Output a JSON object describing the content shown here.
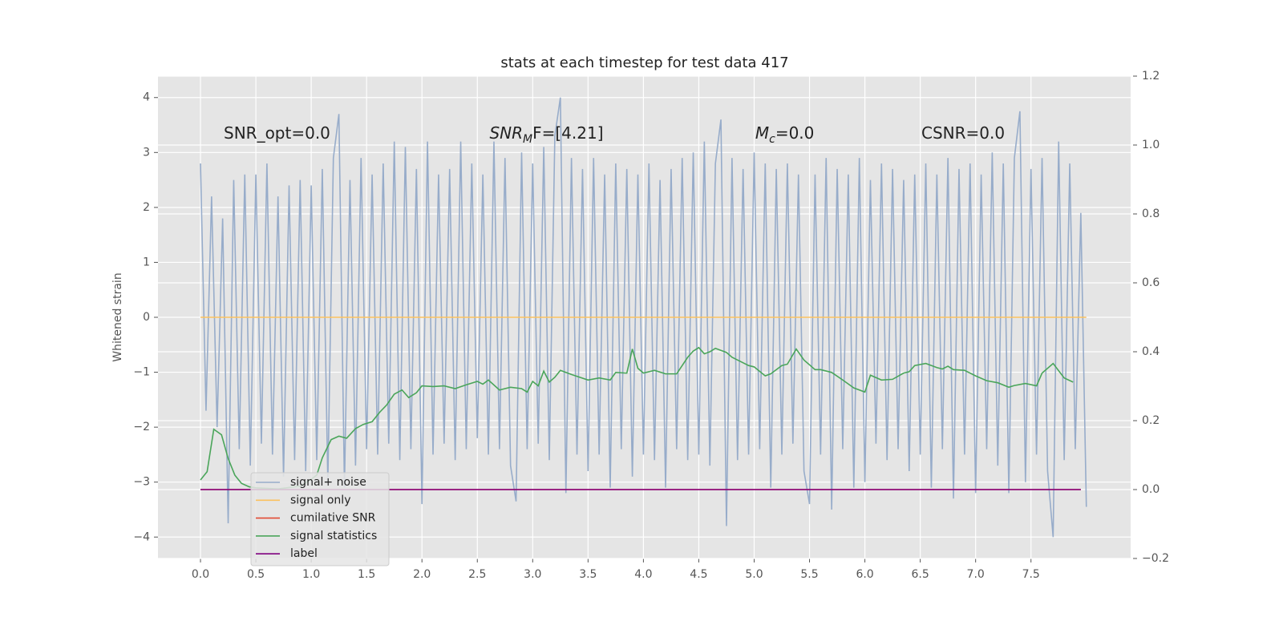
{
  "chart_data": {
    "type": "line",
    "title": "stats at each timestep for test data 417",
    "ylabel": "Whitened strain",
    "xlim": [
      -0.384,
      8.4
    ],
    "ylim": [
      -4.39,
      4.39
    ],
    "y2lim": [
      -0.2,
      1.2
    ],
    "xticks": [
      {
        "value": 0,
        "label": "0.0"
      },
      0.5,
      {
        "value": 1,
        "label": "1.0"
      },
      1.5,
      {
        "value": 2,
        "label": "2.0"
      },
      2.5,
      {
        "value": 3,
        "label": "3.0"
      },
      3.5,
      {
        "value": 4,
        "label": "4.0"
      },
      4.5,
      {
        "value": 5,
        "label": "5.0"
      },
      5.5,
      {
        "value": 6,
        "label": "6.0"
      },
      6.5,
      {
        "value": 7,
        "label": "7.0"
      },
      7.5
    ],
    "yticks": [
      {
        "value": -4,
        "label": "−4"
      },
      {
        "value": -3,
        "label": "−3"
      },
      {
        "value": -2,
        "label": "−2"
      },
      {
        "value": -1,
        "label": "−1"
      },
      0,
      1,
      2,
      3,
      4
    ],
    "y2ticks": [
      {
        "value": -0.2,
        "label": "−0.2"
      },
      {
        "value": 0,
        "label": "0.0"
      },
      0.2,
      0.4,
      0.6,
      0.8,
      {
        "value": 1,
        "label": "1.0"
      },
      1.2
    ],
    "grid": true,
    "legend": "lower left",
    "annotations": [
      {
        "x": 0.21,
        "y": 3.25,
        "text": "SNR_opt=0.0"
      },
      {
        "x": 2.61,
        "y": 3.25,
        "base": "SNR",
        "sub": "M",
        "rest": "F=[4.21]"
      },
      {
        "x": 5.01,
        "y": 3.25,
        "base": "M",
        "sub": "c",
        "rest": "=0.0"
      },
      {
        "x": 6.51,
        "y": 3.25,
        "text": "CSNR=0.0"
      }
    ],
    "series": [
      {
        "name": "signal+ noise",
        "color": "#97acca",
        "x": [
          0,
          0.05,
          0.1,
          0.15,
          0.2,
          0.25,
          0.3,
          0.35,
          0.4,
          0.45,
          0.5,
          0.55,
          0.6,
          0.65,
          0.7,
          0.75,
          0.8,
          0.85,
          0.9,
          0.95,
          1,
          1.05,
          1.1,
          1.15,
          1.2,
          1.25,
          1.3,
          1.35,
          1.4,
          1.45,
          1.5,
          1.55,
          1.6,
          1.65,
          1.7,
          1.75,
          1.8,
          1.85,
          1.9,
          1.95,
          2,
          2.05,
          2.1,
          2.15,
          2.2,
          2.25,
          2.3,
          2.35,
          2.4,
          2.45,
          2.5,
          2.55,
          2.6,
          2.65,
          2.7,
          2.75,
          2.8,
          2.85,
          2.9,
          2.95,
          3,
          3.05,
          3.1,
          3.15,
          3.2,
          3.25,
          3.3,
          3.35,
          3.4,
          3.45,
          3.5,
          3.55,
          3.6,
          3.65,
          3.7,
          3.75,
          3.8,
          3.85,
          3.9,
          3.95,
          4,
          4.05,
          4.1,
          4.15,
          4.2,
          4.25,
          4.3,
          4.35,
          4.4,
          4.45,
          4.5,
          4.55,
          4.6,
          4.65,
          4.7,
          4.75,
          4.8,
          4.85,
          4.9,
          4.95,
          5,
          5.05,
          5.1,
          5.15,
          5.2,
          5.25,
          5.3,
          5.35,
          5.4,
          5.45,
          5.5,
          5.55,
          5.6,
          5.65,
          5.7,
          5.75,
          5.8,
          5.85,
          5.9,
          5.95,
          6,
          6.05,
          6.1,
          6.15,
          6.2,
          6.25,
          6.3,
          6.35,
          6.4,
          6.45,
          6.5,
          6.55,
          6.6,
          6.65,
          6.7,
          6.75,
          6.8,
          6.85,
          6.9,
          6.95,
          7,
          7.05,
          7.1,
          7.15,
          7.2,
          7.25,
          7.3,
          7.35,
          7.4,
          7.45,
          7.5,
          7.55,
          7.6,
          7.65,
          7.7,
          7.75,
          7.8,
          7.85,
          7.9,
          7.95,
          8
        ],
        "values": [
          2.8,
          -1.7,
          2.2,
          -2.0,
          1.8,
          -3.75,
          2.5,
          -2.4,
          2.6,
          -2.7,
          2.6,
          -2.3,
          2.8,
          -2.5,
          2.2,
          -2.9,
          2.4,
          -2.6,
          2.5,
          -2.8,
          2.4,
          -2.6,
          2.7,
          -3.0,
          2.9,
          3.7,
          -3.1,
          2.5,
          -2.7,
          2.9,
          -2.4,
          2.6,
          -2.5,
          2.8,
          -2.3,
          3.2,
          -2.6,
          3.1,
          -2.4,
          2.7,
          -3.4,
          3.2,
          -2.5,
          2.6,
          -2.3,
          2.7,
          -2.6,
          3.2,
          -2.4,
          2.8,
          -2.2,
          2.6,
          -2.5,
          3.2,
          -2.4,
          2.9,
          -2.7,
          -3.35,
          3.0,
          -2.4,
          2.8,
          -2.3,
          3.1,
          -2.6,
          3.3,
          4.0,
          -3.2,
          2.9,
          -2.5,
          2.7,
          -2.8,
          2.9,
          -2.5,
          2.6,
          -3.1,
          2.8,
          -2.4,
          2.7,
          -2.9,
          2.6,
          -2.5,
          2.8,
          -2.6,
          2.5,
          -3.1,
          2.7,
          -2.4,
          2.9,
          -2.6,
          3.0,
          -2.5,
          3.2,
          -2.7,
          2.8,
          3.6,
          -3.8,
          2.9,
          -2.6,
          2.7,
          -2.5,
          3.0,
          -2.4,
          2.8,
          -3.1,
          2.7,
          -2.5,
          2.8,
          -2.3,
          2.6,
          -2.8,
          -3.4,
          2.6,
          -2.5,
          2.9,
          -3.5,
          2.7,
          -2.4,
          2.6,
          -3.1,
          2.9,
          -3.0,
          2.5,
          -2.3,
          2.8,
          -2.6,
          2.7,
          -2.4,
          2.5,
          -2.8,
          2.6,
          -2.5,
          2.8,
          -3.1,
          2.6,
          -2.4,
          2.9,
          -3.3,
          2.7,
          -2.5,
          2.8,
          -3.2,
          2.6,
          -2.4,
          3.0,
          -2.7,
          2.8,
          -3.2,
          2.9,
          3.75,
          -3.0,
          2.7,
          -2.5,
          2.9,
          -2.8,
          -4.0,
          3.2,
          -2.6,
          2.8,
          -2.4,
          1.9,
          -3.45
        ]
      },
      {
        "name": "signal only",
        "color": "#fbc15e",
        "x": [
          0,
          8
        ],
        "values": [
          0,
          0
        ]
      },
      {
        "name": "cumilative SNR",
        "color": "#e24a33",
        "axis": "y2",
        "x": [
          0,
          7.95
        ],
        "values": [
          0,
          0
        ]
      },
      {
        "name": "signal statistics",
        "color": "#4aa55a",
        "axis": "y2",
        "x": [
          0,
          0.06,
          0.12,
          0.19,
          0.25,
          0.31,
          0.37,
          0.44,
          0.5,
          0.7,
          0.9,
          1.0,
          1.05,
          1.1,
          1.18,
          1.25,
          1.32,
          1.4,
          1.47,
          1.55,
          1.62,
          1.68,
          1.75,
          1.82,
          1.88,
          1.95,
          2.0,
          2.1,
          2.2,
          2.3,
          2.4,
          2.5,
          2.55,
          2.6,
          2.7,
          2.8,
          2.9,
          2.95,
          3.0,
          3.05,
          3.1,
          3.15,
          3.2,
          3.25,
          3.35,
          3.5,
          3.6,
          3.7,
          3.75,
          3.85,
          3.9,
          3.95,
          4.0,
          4.1,
          4.2,
          4.3,
          4.4,
          4.45,
          4.5,
          4.55,
          4.6,
          4.65,
          4.75,
          4.8,
          4.85,
          4.95,
          5.0,
          5.1,
          5.15,
          5.25,
          5.3,
          5.38,
          5.45,
          5.55,
          5.6,
          5.7,
          5.8,
          5.9,
          6.0,
          6.05,
          6.15,
          6.25,
          6.35,
          6.4,
          6.45,
          6.55,
          6.65,
          6.7,
          6.75,
          6.8,
          6.9,
          7.0,
          7.1,
          7.2,
          7.3,
          7.35,
          7.45,
          7.55,
          7.6,
          7.7,
          7.8,
          7.88
        ],
        "values": [
          0.028,
          0.052,
          0.175,
          0.159,
          0.09,
          0.042,
          0.018,
          0.008,
          0.005,
          0.002,
          0.01,
          0.03,
          0.042,
          0.092,
          0.145,
          0.155,
          0.149,
          0.177,
          0.189,
          0.197,
          0.225,
          0.245,
          0.277,
          0.289,
          0.267,
          0.281,
          0.301,
          0.299,
          0.301,
          0.293,
          0.304,
          0.314,
          0.306,
          0.318,
          0.289,
          0.297,
          0.293,
          0.283,
          0.314,
          0.301,
          0.344,
          0.312,
          0.326,
          0.346,
          0.334,
          0.318,
          0.324,
          0.318,
          0.34,
          0.338,
          0.408,
          0.352,
          0.338,
          0.346,
          0.336,
          0.336,
          0.384,
          0.402,
          0.412,
          0.394,
          0.4,
          0.41,
          0.398,
          0.384,
          0.376,
          0.36,
          0.356,
          0.33,
          0.336,
          0.36,
          0.364,
          0.408,
          0.376,
          0.348,
          0.348,
          0.34,
          0.318,
          0.295,
          0.283,
          0.332,
          0.318,
          0.32,
          0.338,
          0.342,
          0.36,
          0.366,
          0.354,
          0.35,
          0.358,
          0.348,
          0.346,
          0.33,
          0.316,
          0.31,
          0.297,
          0.302,
          0.308,
          0.301,
          0.338,
          0.366,
          0.324,
          0.312
        ]
      },
      {
        "name": "label",
        "color": "#800080",
        "axis": "y2",
        "x": [
          0,
          7.95
        ],
        "values": [
          0,
          0
        ]
      }
    ]
  }
}
